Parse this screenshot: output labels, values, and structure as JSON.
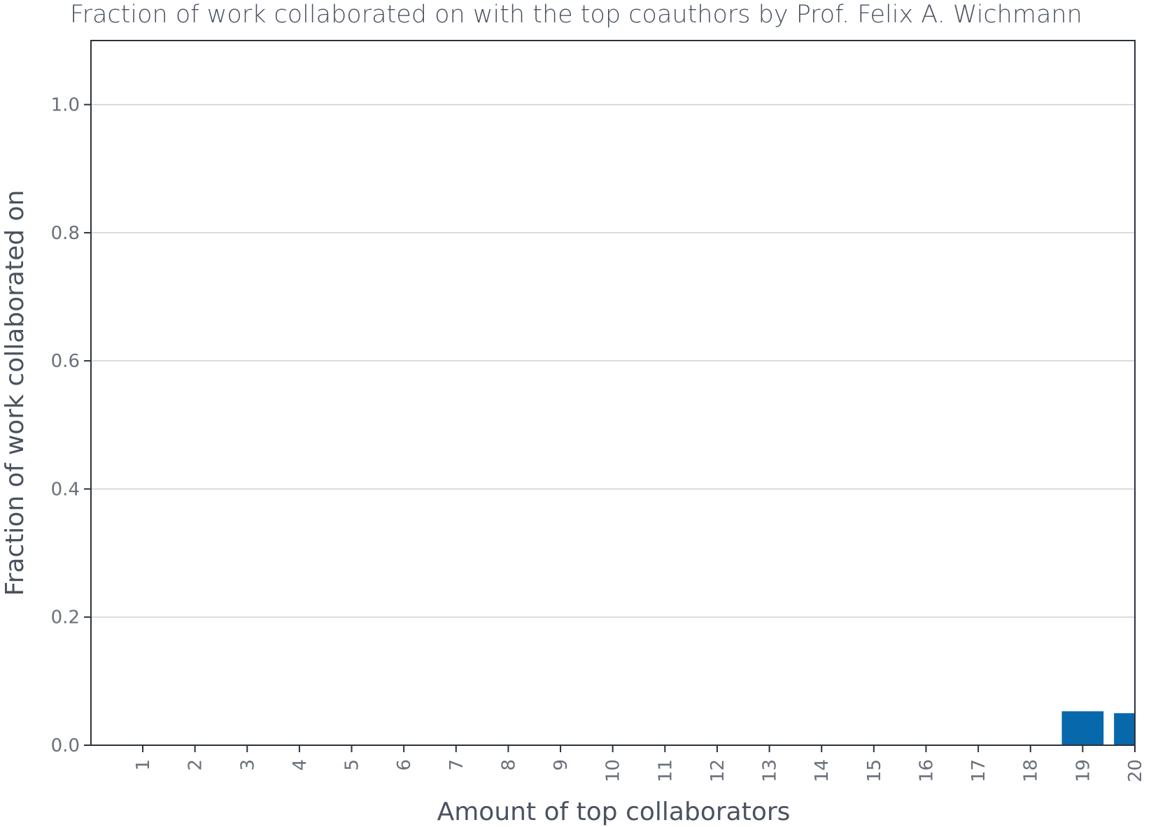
{
  "chart_data": {
    "type": "bar",
    "title": "Fraction of work collaborated on with the top coauthors by Prof. Felix A. Wichmann",
    "xlabel": "Amount of top collaborators",
    "ylabel": "Fraction of work collaborated on",
    "categories": [
      "1",
      "2",
      "3",
      "4",
      "5",
      "6",
      "7",
      "8",
      "9",
      "10",
      "11",
      "12",
      "13",
      "14",
      "15",
      "16",
      "17",
      "18",
      "19",
      "20"
    ],
    "values": [
      0,
      0,
      0,
      0,
      0,
      0,
      0,
      0,
      0,
      0,
      0,
      0,
      0,
      0,
      0,
      0,
      0,
      0,
      0.053,
      0.05
    ],
    "ylim": [
      0,
      1.1
    ],
    "yticks": [
      "0.0",
      "0.2",
      "0.4",
      "0.6",
      "0.8",
      "1.0"
    ],
    "ytick_values": [
      0,
      0.2,
      0.4,
      0.6,
      0.8,
      1.0
    ],
    "grid": "horizontal",
    "bar_color": "#0868ac"
  }
}
